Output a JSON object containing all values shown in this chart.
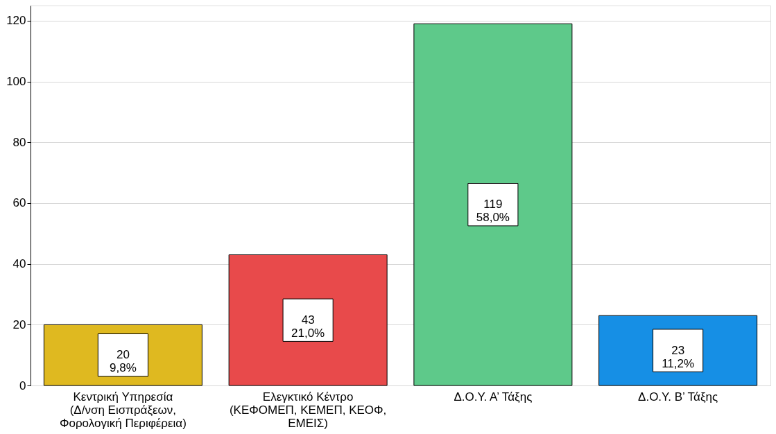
{
  "chart_data": {
    "type": "bar",
    "categories": [
      "Κεντρική Υπηρεσία (Δ/νση Εισπράξεων, Φορολογική Περιφέρεια)",
      "Ελεγκτικό Κέντρο (ΚΕΦΟΜΕΠ, ΚΕΜΕΠ, ΚΕΟΦ, ΕΜΕΙΣ)",
      "Δ.Ο.Υ. Α’ Τάξης",
      "Δ.Ο.Υ. Β’ Τάξης"
    ],
    "values": [
      20,
      43,
      119,
      23
    ],
    "colors": [
      "#dfb920",
      "#e84a4b",
      "#5ec98a",
      "#168fe5"
    ],
    "value_labels": [
      "20\n9,8%",
      "43\n21,0%",
      "119\n58,0%",
      "23\n11,2%"
    ],
    "ylim": [
      0,
      125
    ],
    "yticks": [
      0,
      20,
      40,
      60,
      80,
      100,
      120
    ],
    "grid": "y"
  }
}
